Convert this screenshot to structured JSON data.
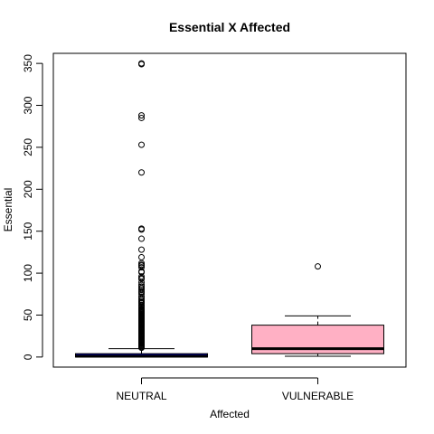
{
  "chart_data": {
    "type": "boxplot",
    "title": "Essential X Affected",
    "xlabel": "Affected",
    "ylabel": "Essential",
    "ylim": [
      -12,
      362
    ],
    "yticks": [
      0,
      50,
      100,
      150,
      200,
      250,
      300,
      350
    ],
    "grid": false,
    "series": [
      {
        "name": "NEUTRAL",
        "color": "#0000A0",
        "whisker_low": 0,
        "q1": 0,
        "median": 1,
        "q3": 4,
        "whisker_high": 10,
        "outliers": [
          350,
          349,
          288,
          285,
          253,
          220,
          153,
          152,
          141,
          128,
          119,
          112,
          110,
          109,
          107,
          102,
          101,
          96,
          94,
          93,
          89,
          86,
          84,
          82,
          80,
          78,
          77,
          75,
          72,
          70,
          68,
          66,
          65,
          64,
          62,
          61,
          60,
          58,
          57,
          56,
          55,
          54,
          53,
          52,
          51,
          50,
          49,
          48,
          47,
          46,
          45,
          44,
          43,
          42,
          41,
          40,
          39,
          38,
          37,
          36,
          35,
          34,
          33,
          32,
          31,
          30,
          29,
          28,
          27,
          26,
          25,
          24,
          23,
          22,
          21,
          20,
          19,
          18,
          17,
          16,
          15,
          14,
          13,
          12,
          11
        ]
      },
      {
        "name": "VULNERABLE",
        "color": "#FFB0C4",
        "whisker_low": 1,
        "q1": 4,
        "median": 10,
        "q3": 38,
        "whisker_high": 49,
        "outliers": [
          108
        ]
      }
    ]
  }
}
